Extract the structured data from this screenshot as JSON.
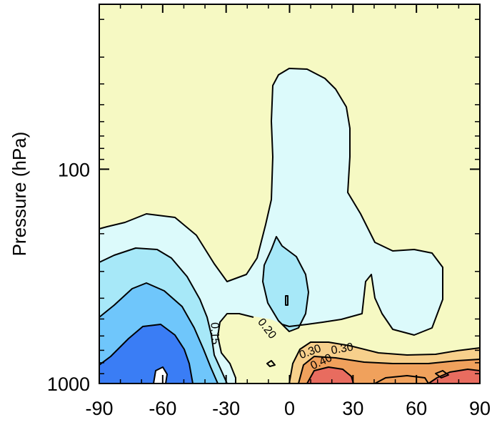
{
  "chart_data": {
    "type": "contour",
    "title": "",
    "xlabel": "",
    "ylabel": "Pressure (hPa)",
    "x_ticks": [
      -90,
      -60,
      -30,
      0,
      30,
      60,
      90
    ],
    "xlim": [
      -90,
      90
    ],
    "y_scale": "log",
    "y_ticks": [
      100,
      1000
    ],
    "ylim": [
      1000,
      17
    ],
    "background_color": "#f6f9c3",
    "contour_labels": [
      "0.15",
      "0.20",
      "0.30",
      "0.40"
    ],
    "fill_colors": {
      "negative_1": "#dcfafb",
      "negative_2": "#a7e8f8",
      "negative_3": "#6fc6fb",
      "negative_4": "#3a7df5",
      "positive_1": "#f7d08c",
      "positive_2": "#f0a15c",
      "positive_3": "#e86c5f"
    }
  }
}
